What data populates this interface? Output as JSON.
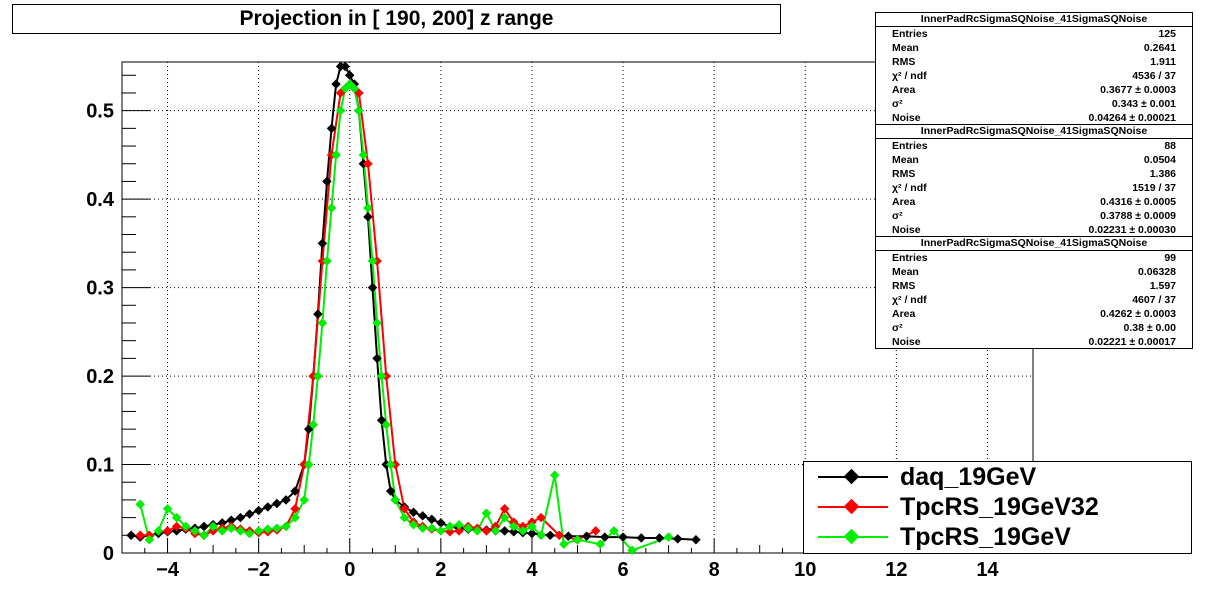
{
  "title": "Projection in [ 190, 200] z range",
  "stats_boxes": [
    {
      "title": "InnerPadRcSigmaSQNoise_41SigmaSQNoise",
      "rows": [
        {
          "label": "Entries",
          "value": "125"
        },
        {
          "label": "Mean",
          "value": "0.2641"
        },
        {
          "label": "RMS",
          "value": "1.911"
        },
        {
          "label": "χ² / ndf",
          "value": "4536 / 37"
        },
        {
          "label": "Area",
          "value": "0.3677 ± 0.0003"
        },
        {
          "label": "σ²",
          "value": "0.343 ± 0.001"
        },
        {
          "label": "Noise",
          "value": "0.04264 ± 0.00021"
        }
      ]
    },
    {
      "title": "InnerPadRcSigmaSQNoise_41SigmaSQNoise",
      "rows": [
        {
          "label": "Entries",
          "value": "88"
        },
        {
          "label": "Mean",
          "value": "0.0504"
        },
        {
          "label": "RMS",
          "value": "1.386"
        },
        {
          "label": "χ² / ndf",
          "value": "1519 / 37"
        },
        {
          "label": "Area",
          "value": "0.4316 ± 0.0005"
        },
        {
          "label": "σ²",
          "value": "0.3788 ± 0.0009"
        },
        {
          "label": "Noise",
          "value": "0.02231 ± 0.00030"
        }
      ]
    },
    {
      "title": "InnerPadRcSigmaSQNoise_41SigmaSQNoise",
      "rows": [
        {
          "label": "Entries",
          "value": "99"
        },
        {
          "label": "Mean",
          "value": "0.06328"
        },
        {
          "label": "RMS",
          "value": "1.597"
        },
        {
          "label": "χ² / ndf",
          "value": "4607 / 37"
        },
        {
          "label": "Area",
          "value": "0.4262 ± 0.0003"
        },
        {
          "label": "σ²",
          "value": "0.38 ± 0.00"
        },
        {
          "label": "Noise",
          "value": "0.02221 ± 0.00017"
        }
      ]
    }
  ],
  "legend": [
    {
      "name": "daq_19GeV",
      "color": "#000000"
    },
    {
      "name": "TpcRS_19GeV32",
      "color": "#ff0000"
    },
    {
      "name": "TpcRS_19GeV",
      "color": "#00ee00"
    }
  ],
  "chart_data": {
    "type": "scatter",
    "title": "Projection in [ 190, 200] z range",
    "xlabel": "",
    "ylabel": "",
    "xlim": [
      -5,
      15
    ],
    "ylim": [
      0,
      0.555
    ],
    "grid": true,
    "legend_position": "bottom-right",
    "x_ticks": [
      -4,
      -2,
      0,
      2,
      4,
      6,
      8,
      10,
      12,
      14
    ],
    "y_ticks": [
      0,
      0.1,
      0.2,
      0.3,
      0.4,
      0.5
    ],
    "x_tick_labels": [
      "−4",
      "−2",
      "0",
      "2",
      "4",
      "6",
      "8",
      "10",
      "12",
      "14"
    ],
    "y_tick_labels": [
      "0",
      "0.1",
      "0.2",
      "0.3",
      "0.4",
      "0.5"
    ],
    "series": [
      {
        "name": "daq_19GeV",
        "color": "#000000",
        "x": [
          -4.8,
          -4.6,
          -4.4,
          -4.2,
          -4.0,
          -3.8,
          -3.6,
          -3.4,
          -3.2,
          -3.0,
          -2.8,
          -2.6,
          -2.4,
          -2.2,
          -2.0,
          -1.8,
          -1.6,
          -1.4,
          -1.2,
          -1.0,
          -0.9,
          -0.8,
          -0.7,
          -0.6,
          -0.5,
          -0.4,
          -0.3,
          -0.2,
          -0.1,
          0.0,
          0.1,
          0.2,
          0.3,
          0.4,
          0.5,
          0.6,
          0.7,
          0.8,
          0.9,
          1.0,
          1.2,
          1.4,
          1.6,
          1.8,
          2.0,
          2.2,
          2.4,
          2.6,
          2.8,
          3.0,
          3.2,
          3.4,
          3.6,
          3.8,
          4.0,
          4.4,
          4.8,
          5.2,
          5.6,
          6.0,
          6.4,
          6.8,
          7.2,
          7.6
        ],
        "y": [
          0.02,
          0.018,
          0.02,
          0.022,
          0.024,
          0.025,
          0.027,
          0.028,
          0.03,
          0.032,
          0.034,
          0.037,
          0.04,
          0.044,
          0.048,
          0.052,
          0.056,
          0.06,
          0.07,
          0.1,
          0.14,
          0.2,
          0.27,
          0.35,
          0.42,
          0.48,
          0.53,
          0.55,
          0.55,
          0.54,
          0.53,
          0.5,
          0.44,
          0.38,
          0.3,
          0.22,
          0.15,
          0.1,
          0.07,
          0.06,
          0.052,
          0.046,
          0.042,
          0.038,
          0.034,
          0.03,
          0.028,
          0.027,
          0.026,
          0.026,
          0.025,
          0.025,
          0.024,
          0.023,
          0.022,
          0.02,
          0.019,
          0.019,
          0.018,
          0.018,
          0.017,
          0.017,
          0.016,
          0.015
        ]
      },
      {
        "name": "TpcRS_19GeV32",
        "color": "#ff0000",
        "x": [
          -4.6,
          -4.4,
          -4.0,
          -3.8,
          -3.6,
          -3.4,
          -3.2,
          -3.0,
          -2.8,
          -2.6,
          -2.4,
          -2.2,
          -2.0,
          -1.8,
          -1.6,
          -1.4,
          -1.2,
          -1.0,
          -0.8,
          -0.6,
          -0.4,
          -0.2,
          0.0,
          0.2,
          0.4,
          0.6,
          0.8,
          1.0,
          1.2,
          1.4,
          1.6,
          1.8,
          2.0,
          2.2,
          2.4,
          2.6,
          2.8,
          3.0,
          3.2,
          3.4,
          3.6,
          3.8,
          4.0,
          4.2,
          4.6,
          5.0,
          5.4
        ],
        "y": [
          0.02,
          0.02,
          0.025,
          0.03,
          0.028,
          0.022,
          0.02,
          0.025,
          0.028,
          0.03,
          0.027,
          0.025,
          0.023,
          0.024,
          0.026,
          0.03,
          0.05,
          0.1,
          0.2,
          0.33,
          0.45,
          0.52,
          0.53,
          0.52,
          0.44,
          0.33,
          0.2,
          0.1,
          0.05,
          0.035,
          0.03,
          0.027,
          0.025,
          0.024,
          0.025,
          0.03,
          0.028,
          0.025,
          0.03,
          0.05,
          0.035,
          0.03,
          0.035,
          0.04,
          0.02,
          0.015,
          0.025
        ]
      },
      {
        "name": "TpcRS_19GeV",
        "color": "#00ee00",
        "x": [
          -4.6,
          -4.4,
          -4.2,
          -4.0,
          -3.8,
          -3.6,
          -3.4,
          -3.2,
          -3.0,
          -2.8,
          -2.6,
          -2.4,
          -2.2,
          -2.0,
          -1.8,
          -1.6,
          -1.4,
          -1.2,
          -1.0,
          -0.9,
          -0.8,
          -0.7,
          -0.6,
          -0.5,
          -0.4,
          -0.3,
          -0.2,
          -0.1,
          0.0,
          0.1,
          0.2,
          0.3,
          0.4,
          0.5,
          0.6,
          0.7,
          0.8,
          0.9,
          1.0,
          1.2,
          1.4,
          1.6,
          1.8,
          2.0,
          2.2,
          2.4,
          2.6,
          2.8,
          3.0,
          3.2,
          3.4,
          3.6,
          3.8,
          4.0,
          4.2,
          4.5,
          4.7,
          5.0,
          5.5,
          5.8,
          6.2,
          7.0
        ],
        "y": [
          0.055,
          0.015,
          0.025,
          0.05,
          0.04,
          0.03,
          0.025,
          0.02,
          0.03,
          0.025,
          0.028,
          0.025,
          0.022,
          0.025,
          0.027,
          0.028,
          0.03,
          0.04,
          0.06,
          0.1,
          0.145,
          0.2,
          0.26,
          0.33,
          0.39,
          0.45,
          0.5,
          0.525,
          0.53,
          0.525,
          0.5,
          0.45,
          0.39,
          0.33,
          0.26,
          0.2,
          0.145,
          0.1,
          0.06,
          0.04,
          0.032,
          0.028,
          0.028,
          0.025,
          0.03,
          0.032,
          0.028,
          0.025,
          0.045,
          0.025,
          0.04,
          0.03,
          0.025,
          0.03,
          0.02,
          0.088,
          0.01,
          0.015,
          0.01,
          0.025,
          0.003,
          0.018
        ]
      }
    ]
  }
}
